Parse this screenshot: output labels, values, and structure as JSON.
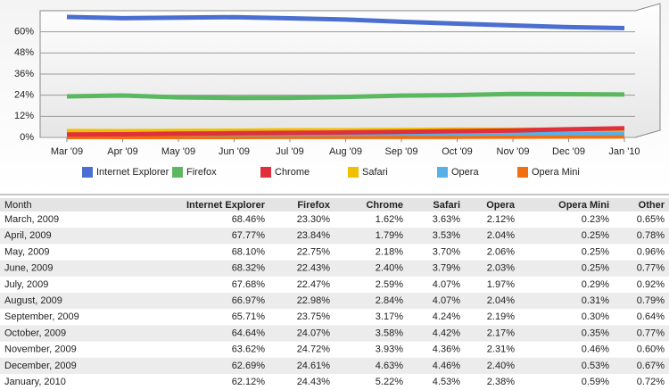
{
  "chart_data": {
    "type": "line",
    "categories": [
      "Mar '09",
      "Apr '09",
      "May '09",
      "Jun '09",
      "Jul '09",
      "Aug '09",
      "Sep '09",
      "Oct '09",
      "Nov '09",
      "Dec '09",
      "Jan '10"
    ],
    "series": [
      {
        "name": "Internet Explorer",
        "color": "#4a6fd0",
        "values": [
          68.46,
          67.77,
          68.1,
          68.32,
          67.68,
          66.97,
          65.71,
          64.64,
          63.62,
          62.69,
          62.12
        ]
      },
      {
        "name": "Firefox",
        "color": "#5cb860",
        "values": [
          23.3,
          23.84,
          22.75,
          22.43,
          22.47,
          22.98,
          23.75,
          24.07,
          24.72,
          24.61,
          24.43
        ]
      },
      {
        "name": "Chrome",
        "color": "#e0303c",
        "values": [
          1.62,
          1.79,
          2.18,
          2.4,
          2.59,
          2.84,
          3.17,
          3.58,
          3.93,
          4.63,
          5.22
        ]
      },
      {
        "name": "Safari",
        "color": "#f0c000",
        "values": [
          3.63,
          3.53,
          3.7,
          3.79,
          4.07,
          4.07,
          4.24,
          4.42,
          4.36,
          4.46,
          4.53
        ]
      },
      {
        "name": "Opera",
        "color": "#58b0e8",
        "values": [
          2.12,
          2.04,
          2.06,
          2.03,
          1.97,
          2.04,
          2.19,
          2.17,
          2.31,
          2.4,
          2.38
        ]
      },
      {
        "name": "Opera Mini",
        "color": "#f07010",
        "values": [
          0.23,
          0.25,
          0.25,
          0.25,
          0.29,
          0.31,
          0.3,
          0.35,
          0.46,
          0.53,
          0.59
        ]
      }
    ],
    "ylim": [
      0,
      72
    ],
    "yticks": [
      {
        "value": 0,
        "label": "0%"
      },
      {
        "value": 12,
        "label": "12%"
      },
      {
        "value": 24,
        "label": "24%"
      },
      {
        "value": 36,
        "label": "36%"
      },
      {
        "value": 48,
        "label": "48%"
      },
      {
        "value": 60,
        "label": "60%"
      }
    ],
    "grid": true
  },
  "table": {
    "header": [
      "Month",
      "Internet Explorer",
      "Firefox",
      "Chrome",
      "Safari",
      "Opera",
      "Opera Mini",
      "Other"
    ],
    "rows": [
      [
        "March, 2009",
        "68.46%",
        "23.30%",
        "1.62%",
        "3.63%",
        "2.12%",
        "0.23%",
        "0.65%"
      ],
      [
        "April, 2009",
        "67.77%",
        "23.84%",
        "1.79%",
        "3.53%",
        "2.04%",
        "0.25%",
        "0.78%"
      ],
      [
        "May, 2009",
        "68.10%",
        "22.75%",
        "2.18%",
        "3.70%",
        "2.06%",
        "0.25%",
        "0.96%"
      ],
      [
        "June, 2009",
        "68.32%",
        "22.43%",
        "2.40%",
        "3.79%",
        "2.03%",
        "0.25%",
        "0.77%"
      ],
      [
        "July, 2009",
        "67.68%",
        "22.47%",
        "2.59%",
        "4.07%",
        "1.97%",
        "0.29%",
        "0.92%"
      ],
      [
        "August, 2009",
        "66.97%",
        "22.98%",
        "2.84%",
        "4.07%",
        "2.04%",
        "0.31%",
        "0.79%"
      ],
      [
        "September, 2009",
        "65.71%",
        "23.75%",
        "3.17%",
        "4.24%",
        "2.19%",
        "0.30%",
        "0.64%"
      ],
      [
        "October, 2009",
        "64.64%",
        "24.07%",
        "3.58%",
        "4.42%",
        "2.17%",
        "0.35%",
        "0.77%"
      ],
      [
        "November, 2009",
        "63.62%",
        "24.72%",
        "3.93%",
        "4.36%",
        "2.31%",
        "0.46%",
        "0.60%"
      ],
      [
        "December, 2009",
        "62.69%",
        "24.61%",
        "4.63%",
        "4.46%",
        "2.40%",
        "0.53%",
        "0.67%"
      ],
      [
        "January, 2010",
        "62.12%",
        "24.43%",
        "5.22%",
        "4.53%",
        "2.38%",
        "0.59%",
        "0.72%"
      ]
    ]
  }
}
